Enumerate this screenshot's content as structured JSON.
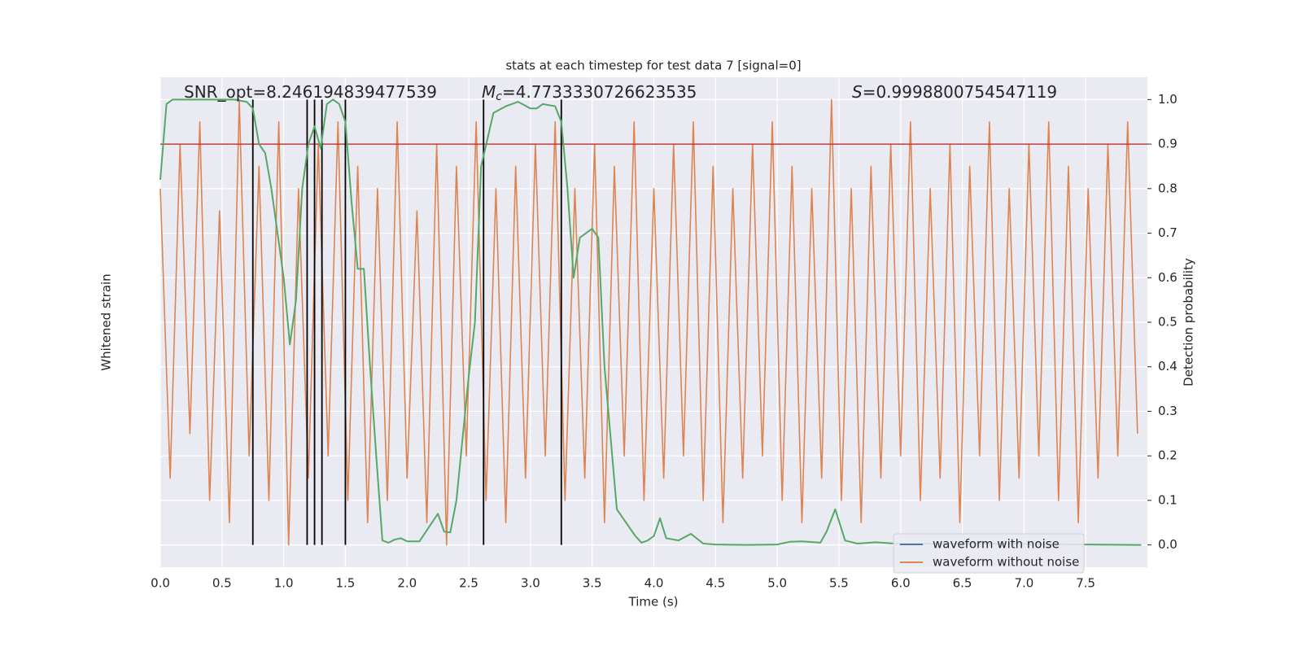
{
  "chart_data": {
    "type": "line",
    "title": "stats at each timestep for test data 7 [signal=0]",
    "xlabel": "Time (s)",
    "ylabel": "Whitened strain",
    "y2label": "Detection probability",
    "annotations": [
      {
        "text": "SNR_opt=8.246194839477539"
      },
      {
        "symbol": "M",
        "sub": "c",
        "text": "=4.7733330726623535"
      },
      {
        "symbol": "S",
        "text": "=0.9998800754547119"
      }
    ],
    "legend": [
      {
        "name": "waveform with noise",
        "color": "#4c72b0"
      },
      {
        "name": "waveform without noise",
        "color": "#dd8452"
      }
    ],
    "legend_loc": "lower right",
    "grid": true,
    "xlim": [
      0,
      8
    ],
    "xticks": [
      {
        "value": 0,
        "label": "0.0"
      },
      0.5,
      {
        "value": 1,
        "label": "1.0"
      },
      1.5,
      {
        "value": 2,
        "label": "2.0"
      },
      2.5,
      {
        "value": 3,
        "label": "3.0"
      },
      3.5,
      {
        "value": 4,
        "label": "4.0"
      },
      4.5,
      {
        "value": 5,
        "label": "5.0"
      },
      5.5,
      {
        "value": 6,
        "label": "6.0"
      },
      6.5,
      {
        "value": 7,
        "label": "7.0"
      },
      7.5
    ],
    "ylim": [
      -1.1,
      1.1
    ],
    "y2lim": [
      -0.05,
      1.05
    ],
    "y2ticks": [
      {
        "value": 0,
        "label": "0.0"
      },
      0.1,
      0.2,
      0.3,
      0.4,
      0.5,
      0.6,
      0.7,
      0.8,
      0.9,
      {
        "value": 1,
        "label": "1.0"
      }
    ],
    "series": [
      {
        "name": "waveform without noise",
        "color": "#dd8452",
        "x": [
          0,
          0.08,
          0.16,
          0.24,
          0.32,
          0.4,
          0.48,
          0.56,
          0.64,
          0.72,
          0.8,
          0.88,
          0.96,
          1.04,
          1.12,
          1.2,
          1.28,
          1.36,
          1.44,
          1.52,
          1.6,
          1.68,
          1.76,
          1.84,
          1.92,
          2,
          2.08,
          2.16,
          2.24,
          2.32,
          2.4,
          2.48,
          2.56,
          2.64,
          2.72,
          2.8,
          2.88,
          2.96,
          3.04,
          3.12,
          3.2,
          3.28,
          3.36,
          3.44,
          3.52,
          3.6,
          3.68,
          3.76,
          3.84,
          3.92,
          4,
          4.08,
          4.16,
          4.24,
          4.32,
          4.4,
          4.48,
          4.56,
          4.64,
          4.72,
          4.8,
          4.88,
          4.96,
          5.04,
          5.12,
          5.2,
          5.28,
          5.36,
          5.44,
          5.52,
          5.6,
          5.68,
          5.76,
          5.84,
          5.92,
          6,
          6.08,
          6.16,
          6.24,
          6.32,
          6.4,
          6.48,
          6.56,
          6.64,
          6.72,
          6.8,
          6.88,
          6.96,
          7.04,
          7.12,
          7.2,
          7.28,
          7.36,
          7.44,
          7.52,
          7.6,
          7.68,
          7.76,
          7.84,
          7.92
        ],
        "values": [
          0.6,
          -0.7,
          0.8,
          -0.5,
          0.9,
          -0.8,
          0.5,
          -0.9,
          1.0,
          -0.6,
          0.7,
          -0.8,
          0.9,
          -1.0,
          0.6,
          -0.7,
          0.8,
          -0.6,
          0.9,
          -0.8,
          0.7,
          -0.9,
          0.6,
          -0.8,
          0.9,
          -0.7,
          0.5,
          -0.9,
          0.8,
          -1.0,
          0.7,
          -0.6,
          0.9,
          -0.8,
          0.6,
          -0.9,
          0.7,
          -0.7,
          0.8,
          -0.6,
          0.9,
          -0.8,
          0.6,
          -0.7,
          0.8,
          -0.9,
          0.7,
          -0.6,
          0.9,
          -0.8,
          0.6,
          -0.7,
          0.8,
          -0.6,
          0.9,
          -0.8,
          0.7,
          -0.9,
          0.6,
          -0.7,
          0.8,
          -0.6,
          0.9,
          -0.8,
          0.7,
          -0.9,
          0.6,
          -0.7,
          1.0,
          -0.8,
          0.6,
          -0.9,
          0.7,
          -0.7,
          0.8,
          -0.6,
          0.9,
          -0.8,
          0.6,
          -0.7,
          0.8,
          -0.9,
          0.7,
          -0.6,
          0.9,
          -0.8,
          0.6,
          -0.7,
          0.8,
          -0.6,
          0.9,
          -0.8,
          0.7,
          -0.9,
          0.6,
          -0.7,
          0.8,
          -0.6,
          0.9,
          -0.5
        ]
      },
      {
        "name": "Detection probability",
        "color": "#55a868",
        "axis": "y2",
        "x": [
          0,
          0.05,
          0.1,
          0.2,
          0.3,
          0.4,
          0.5,
          0.6,
          0.7,
          0.75,
          0.8,
          0.85,
          0.9,
          0.95,
          1,
          1.05,
          1.1,
          1.15,
          1.2,
          1.25,
          1.3,
          1.35,
          1.4,
          1.45,
          1.5,
          1.55,
          1.6,
          1.65,
          1.7,
          1.75,
          1.8,
          1.85,
          1.9,
          1.95,
          2,
          2.1,
          2.25,
          2.3,
          2.35,
          2.4,
          2.5,
          2.55,
          2.6,
          2.7,
          2.8,
          2.9,
          3,
          3.05,
          3.1,
          3.2,
          3.25,
          3.3,
          3.35,
          3.4,
          3.5,
          3.55,
          3.6,
          3.7,
          3.8,
          3.85,
          3.9,
          3.95,
          4,
          4.05,
          4.1,
          4.2,
          4.3,
          4.4,
          4.5,
          4.75,
          5,
          5.1,
          5.2,
          5.35,
          5.4,
          5.47,
          5.55,
          5.65,
          5.8,
          6,
          6.5,
          7,
          7.5,
          7.95
        ],
        "values": [
          0.82,
          0.99,
          1,
          1,
          1,
          1,
          1,
          1,
          0.995,
          0.98,
          0.9,
          0.88,
          0.8,
          0.7,
          0.6,
          0.45,
          0.55,
          0.8,
          0.9,
          0.94,
          0.89,
          0.99,
          1,
          0.99,
          0.95,
          0.77,
          0.62,
          0.62,
          0.4,
          0.2,
          0.01,
          0.005,
          0.012,
          0.015,
          0.008,
          0.008,
          0.07,
          0.03,
          0.028,
          0.1,
          0.38,
          0.5,
          0.85,
          0.97,
          0.985,
          0.995,
          0.98,
          0.98,
          0.99,
          0.985,
          0.95,
          0.8,
          0.6,
          0.69,
          0.71,
          0.69,
          0.4,
          0.08,
          0.04,
          0.02,
          0.005,
          0.01,
          0.02,
          0.06,
          0.015,
          0.01,
          0.025,
          0.003,
          0.001,
          0,
          0.001,
          0.007,
          0.008,
          0.005,
          0.03,
          0.08,
          0.01,
          0.003,
          0.006,
          0.002,
          0.003,
          0.002,
          0.001,
          0
        ]
      }
    ],
    "vlines": {
      "x": [
        0.75,
        1.19,
        1.25,
        1.31,
        1.5,
        2.62,
        3.25
      ],
      "ymin": 0,
      "ymax": 1,
      "color": "#000000",
      "axis": "y2"
    },
    "hline": {
      "y": 0.9,
      "color": "#c03d3e",
      "axis": "y2"
    }
  }
}
